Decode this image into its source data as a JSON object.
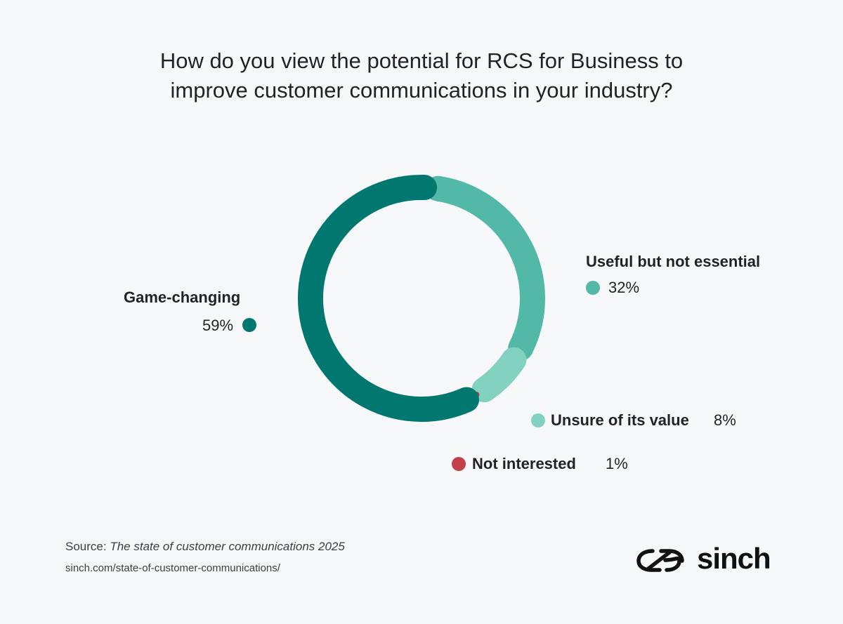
{
  "title_lines": [
    "How do you view the potential for RCS for Business to",
    "improve customer communications in your industry?"
  ],
  "colors": {
    "game_changing": "#00786f",
    "useful": "#52b8a7",
    "unsure": "#82d2bf",
    "not_interested": "#c1404a"
  },
  "chart_data": {
    "type": "pie",
    "variant": "donut",
    "title": "How do you view the potential for RCS for Business to improve customer communications in your industry?",
    "slices": [
      {
        "label": "Useful but not essential",
        "value": 32,
        "value_label": "32%"
      },
      {
        "label": "Unsure of its value",
        "value": 8,
        "value_label": "8%"
      },
      {
        "label": "Not interested",
        "value": 1,
        "value_label": "1%"
      },
      {
        "label": "Game-changing",
        "value": 59,
        "value_label": "59%"
      }
    ]
  },
  "footer": {
    "source_prefix": "Source:",
    "source_title": "The state of customer communications 2025",
    "url": "sinch.com/state-of-customer-communications/"
  },
  "brand": {
    "name": "sinch",
    "logo_icon": "sinch-infinity-icon"
  }
}
